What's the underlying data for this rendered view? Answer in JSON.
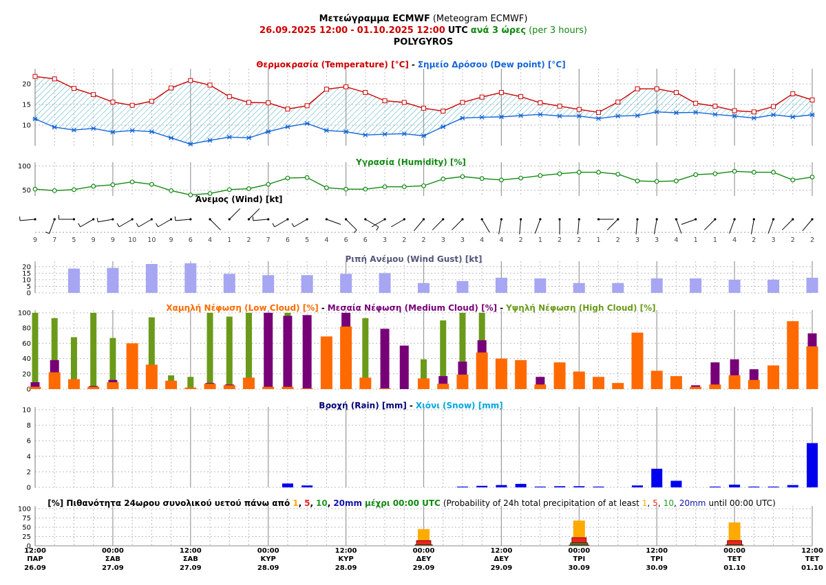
{
  "header": {
    "title_bold": "Μετεώγραμμα ECMWF",
    "title_normal": "(Meteogram ECMWF)",
    "range_start": "26.09.2025 12:00",
    "range_sep": "-",
    "range_end": "01.10.2025 12:00",
    "range_utc": "UTC",
    "step_bold": "ανά 3 ώρες",
    "step_normal": "(per 3 hours)",
    "location": "POLYGYROS"
  },
  "colors": {
    "temperature": "#cc0000",
    "dew_point": "#1565d8",
    "humidity": "#118811",
    "wind": "#000000",
    "gust": "#a6a6f2",
    "low_cloud": "#ff6a00",
    "medium_cloud": "#770077",
    "high_cloud": "#6b9a1a",
    "rain": "#0000ee",
    "snow": "#00a8e0",
    "prob_1": "#ffaa00",
    "prob_5": "#ee2222",
    "prob_10": "#229922",
    "prob_20": "#1111aa"
  },
  "panels": {
    "temperature": {
      "t1": "Θερμοκρασία (Temperature) [°C]",
      "sep": "-",
      "t2": "Σημείο Δρόσου (Dew point) [°C]"
    },
    "humidity": {
      "t1": "Υγρασία (Humidity) [%]"
    },
    "wind": {
      "t1": "Άνεμος (Wind) [kt]"
    },
    "gust": {
      "t1": "Ριπή Ανέμου (Wind Gust) [kt]"
    },
    "cloud": {
      "t1": "Χαμηλή Νέφωση (Low Cloud) [%]",
      "sep1": "-",
      "t2": "Μεσαία Νέφωση (Medium Cloud) [%]",
      "sep2": "-",
      "t3": "Υψηλή Νέφωση (High Cloud) [%]"
    },
    "precip": {
      "t1": "Βροχή (Rain) [mm]",
      "sep": "-",
      "t2": "Χιόνι (Snow) [mm]"
    },
    "prob": {
      "t1": "[%] Πιθανότητα 24ωρου συνολικού υετού πάνω από",
      "v1": "1",
      "c1": ",",
      "v2": "5",
      "c2": ",",
      "v3": "10",
      "c3": ",",
      "v4": "20mm",
      "t2": "μέχρι 00:00 UTC",
      "t3": "(Probability of 24h total precipitation of at least",
      "w1": "1",
      "d1": ",",
      "w2": "5",
      "d2": ",",
      "w3": "10",
      "d3": ",",
      "w4": "20mm",
      "t4": "until 00:00 UTC)"
    }
  },
  "chart_data": {
    "type": "meteogram",
    "time_steps": 41,
    "x_labels": [
      {
        "step": 0,
        "time": "12:00",
        "day": "ΠΑΡ",
        "date": "26.09"
      },
      {
        "step": 4,
        "time": "00:00",
        "day": "ΣΑΒ",
        "date": "27.09"
      },
      {
        "step": 8,
        "time": "12:00",
        "day": "ΣΑΒ",
        "date": "27.09"
      },
      {
        "step": 12,
        "time": "00:00",
        "day": "ΚΥΡ",
        "date": "28.09"
      },
      {
        "step": 16,
        "time": "12:00",
        "day": "ΚΥΡ",
        "date": "28.09"
      },
      {
        "step": 20,
        "time": "00:00",
        "day": "ΔΕΥ",
        "date": "29.09"
      },
      {
        "step": 24,
        "time": "12:00",
        "day": "ΔΕΥ",
        "date": "29.09"
      },
      {
        "step": 28,
        "time": "00:00",
        "day": "ΤΡΙ",
        "date": "30.09"
      },
      {
        "step": 32,
        "time": "12:00",
        "day": "ΤΡΙ",
        "date": "30.09"
      },
      {
        "step": 36,
        "time": "00:00",
        "day": "ΤΕΤ",
        "date": "01.10"
      },
      {
        "step": 40,
        "time": "12:00",
        "day": "ΤΕΤ",
        "date": "01.10"
      }
    ],
    "temperature": {
      "ylim": [
        5,
        23
      ],
      "yticks": [
        10,
        15,
        20
      ],
      "values": [
        21.8,
        21.2,
        18.9,
        17.4,
        15.6,
        14.8,
        15.8,
        19.0,
        20.8,
        19.7,
        16.9,
        15.5,
        15.4,
        13.9,
        14.7,
        18.7,
        19.3,
        17.9,
        15.9,
        15.5,
        14.1,
        13.4,
        15.5,
        16.8,
        17.9,
        16.9,
        15.4,
        14.6,
        13.8,
        13.1,
        15.6,
        18.8,
        18.8,
        17.9,
        15.3,
        14.6,
        13.5,
        13.2,
        14.5,
        17.6,
        16.1
      ]
    },
    "dew_point": {
      "values": [
        11.5,
        9.5,
        8.8,
        9.2,
        8.3,
        8.7,
        8.4,
        6.9,
        5.4,
        6.3,
        7.1,
        6.9,
        8.4,
        9.6,
        10.4,
        8.7,
        8.4,
        7.6,
        7.8,
        7.9,
        7.4,
        9.6,
        11.7,
        11.9,
        12.0,
        12.3,
        12.6,
        12.2,
        12.2,
        11.6,
        12.2,
        12.3,
        13.2,
        13.0,
        13.1,
        12.6,
        12.2,
        11.7,
        12.5,
        12.0,
        12.5
      ]
    },
    "humidity": {
      "ylim": [
        38,
        102
      ],
      "yticks": [
        50,
        100
      ],
      "values": [
        52,
        49,
        51,
        58,
        61,
        67,
        62,
        49,
        40,
        43,
        51,
        53,
        62,
        75,
        76,
        55,
        52,
        52,
        57,
        57,
        59,
        73,
        78,
        74,
        71,
        75,
        80,
        84,
        87,
        87,
        83,
        69,
        68,
        69,
        82,
        84,
        89,
        87,
        87,
        71,
        77
      ]
    },
    "wind": {
      "speeds": [
        9,
        7,
        5,
        9,
        9,
        10,
        10,
        9,
        6,
        4,
        1,
        2,
        7,
        6,
        5,
        4,
        6,
        6,
        3,
        2,
        2,
        3,
        3,
        4,
        4,
        2,
        1,
        2,
        2,
        1,
        2,
        3,
        3,
        4,
        1,
        1,
        4,
        2,
        3,
        2,
        2
      ],
      "dirs": [
        265,
        200,
        270,
        240,
        260,
        240,
        240,
        240,
        265,
        135,
        45,
        45,
        265,
        240,
        240,
        110,
        135,
        120,
        240,
        240,
        220,
        225,
        225,
        150,
        190,
        185,
        200,
        180,
        185,
        90,
        225,
        185,
        190,
        160,
        250,
        225,
        200,
        190,
        200,
        225,
        220
      ]
    },
    "gust": {
      "ylim": [
        0,
        22
      ],
      "yticks": [
        0,
        5,
        10,
        15,
        20
      ],
      "step": 2,
      "values": [
        18.5,
        19,
        22,
        22.5,
        14.5,
        13.5,
        13.5,
        14.5,
        15,
        7.5,
        9,
        11.5,
        11,
        7.5,
        7.5,
        11,
        11,
        10,
        10,
        11.5
      ]
    },
    "low_cloud": {
      "ylim": [
        0,
        100
      ],
      "yticks": [
        0,
        20,
        40,
        60,
        80,
        100
      ],
      "values": [
        3,
        22,
        13,
        3,
        9,
        60,
        32,
        11,
        2,
        7,
        5,
        15,
        3,
        3,
        1,
        69,
        82,
        15,
        1,
        0,
        14,
        7,
        19,
        48,
        40,
        38,
        6,
        35,
        23,
        16,
        8,
        74,
        24,
        17,
        3,
        6,
        18,
        12,
        31,
        89,
        56
      ]
    },
    "medium_cloud": {
      "values": [
        9,
        38,
        0,
        4,
        12,
        0,
        0,
        0,
        0,
        8,
        6,
        0,
        100,
        96,
        97,
        0,
        100,
        0,
        79,
        57,
        0,
        17,
        36,
        64,
        0,
        0,
        16,
        0,
        0,
        0,
        0,
        0,
        0,
        0,
        5,
        35,
        39,
        26,
        0,
        0,
        73
      ]
    },
    "high_cloud": {
      "values": [
        100,
        93,
        68,
        100,
        67,
        0,
        94,
        18,
        16,
        100,
        95,
        100,
        100,
        100,
        0,
        0,
        100,
        93,
        0,
        0,
        39,
        90,
        100,
        100,
        0,
        0,
        0,
        0,
        0,
        0,
        0,
        0,
        0,
        0,
        0,
        0,
        0,
        0,
        0,
        0,
        0
      ]
    },
    "rain": {
      "ylim": [
        0,
        10
      ],
      "yticks": [
        0,
        2,
        4,
        6,
        8,
        10
      ],
      "values": [
        0,
        0,
        0,
        0,
        0,
        0,
        0,
        0,
        0,
        0,
        0,
        0,
        0,
        0.5,
        0.25,
        0,
        0,
        0,
        0,
        0,
        0,
        0,
        0.1,
        0.2,
        0.3,
        0.45,
        0.1,
        0.15,
        0.15,
        0.1,
        0,
        0.25,
        2.4,
        0.85,
        0,
        0.1,
        0.35,
        0.1,
        0.1,
        0.3,
        5.7
      ]
    },
    "snow": {
      "values": [
        0,
        0,
        0,
        0,
        0,
        0,
        0,
        0,
        0,
        0,
        0,
        0,
        0,
        0,
        0,
        0,
        0,
        0,
        0,
        0,
        0,
        0,
        0,
        0,
        0,
        0,
        0,
        0,
        0,
        0,
        0,
        0,
        0,
        0,
        0,
        0,
        0,
        0,
        0,
        0,
        0
      ]
    },
    "probability": {
      "ylim": [
        0,
        100
      ],
      "yticks": [
        0,
        25,
        50,
        75,
        100
      ],
      "entries": [
        {
          "step": 20,
          "p1": 45,
          "p5": 14,
          "p10": 3,
          "p20": 0
        },
        {
          "step": 28,
          "p1": 68,
          "p5": 22,
          "p10": 8,
          "p20": 2
        },
        {
          "step": 36,
          "p1": 63,
          "p5": 14,
          "p10": 3,
          "p20": 0
        }
      ]
    }
  }
}
